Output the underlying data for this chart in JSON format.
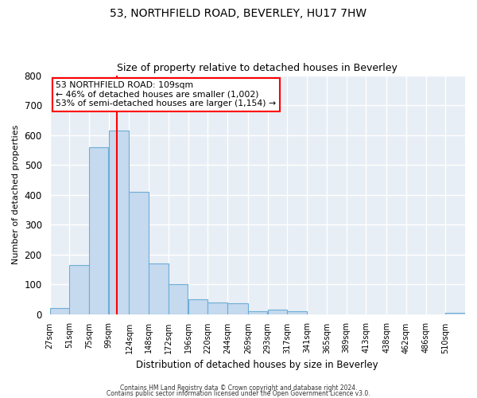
{
  "title1": "53, NORTHFIELD ROAD, BEVERLEY, HU17 7HW",
  "title2": "Size of property relative to detached houses in Beverley",
  "xlabel": "Distribution of detached houses by size in Beverley",
  "ylabel": "Number of detached properties",
  "bin_labels": [
    "27sqm",
    "51sqm",
    "75sqm",
    "99sqm",
    "124sqm",
    "148sqm",
    "172sqm",
    "196sqm",
    "220sqm",
    "244sqm",
    "269sqm",
    "293sqm",
    "317sqm",
    "341sqm",
    "365sqm",
    "389sqm",
    "413sqm",
    "438sqm",
    "462sqm",
    "486sqm",
    "510sqm"
  ],
  "bar_values": [
    20,
    165,
    560,
    615,
    410,
    170,
    100,
    50,
    40,
    35,
    10,
    15,
    10,
    0,
    0,
    0,
    0,
    0,
    0,
    0,
    5
  ],
  "bar_color": "#c5d9ef",
  "bar_edge_color": "#6baed6",
  "red_line_x": 109,
  "ylim": [
    0,
    800
  ],
  "yticks": [
    0,
    100,
    200,
    300,
    400,
    500,
    600,
    700,
    800
  ],
  "annotation_title": "53 NORTHFIELD ROAD: 109sqm",
  "annotation_line1": "← 46% of detached houses are smaller (1,002)",
  "annotation_line2": "53% of semi-detached houses are larger (1,154) →",
  "footer1": "Contains HM Land Registry data © Crown copyright and database right 2024.",
  "footer2": "Contains public sector information licensed under the Open Government Licence v3.0.",
  "bg_color": "#ffffff",
  "plot_bg_color": "#e8eef5"
}
